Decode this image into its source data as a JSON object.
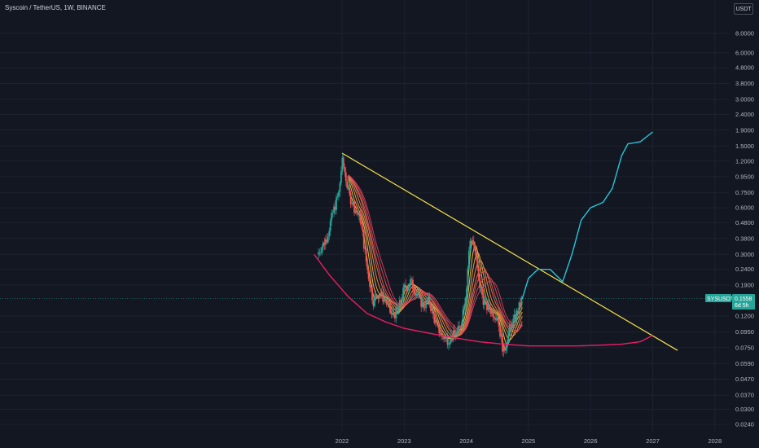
{
  "header": {
    "title": "Syscoin / TetherUS, 1W, BINANCE",
    "currency_button": "USDT"
  },
  "colors": {
    "background": "#131722",
    "grid": "#1e222d",
    "up": "#26a69a",
    "down": "#ef5350",
    "trendline": "#f5e24a",
    "support_curve": "#e91e63",
    "projection": "#26c6da",
    "price_line": "#26a69a"
  },
  "chart_data": {
    "type": "line",
    "symbol_label": "SYSUSDT",
    "last_price": "0.1558",
    "countdown": "6d 5h",
    "y_scale": "log",
    "y_ticks": [
      "8.0000",
      "6.0000",
      "4.8000",
      "3.8000",
      "3.0000",
      "2.4000",
      "1.9000",
      "1.5000",
      "1.2000",
      "0.9500",
      "0.7500",
      "0.6000",
      "0.4800",
      "0.3800",
      "0.3000",
      "0.2400",
      "0.1900",
      "0.1200",
      "0.0950",
      "0.0750",
      "0.0590",
      "0.0470",
      "0.0370",
      "0.0300",
      "0.0240"
    ],
    "x_ticks": [
      "2022",
      "2023",
      "2024",
      "2025",
      "2026",
      "2027",
      "2028"
    ],
    "grid": true,
    "series": [
      {
        "kind": "price",
        "x": [
          2021.6,
          2021.75,
          2021.85,
          2021.95,
          2022.0,
          2022.05,
          2022.1,
          2022.2,
          2022.3,
          2022.4,
          2022.5,
          2022.6,
          2022.7,
          2022.8,
          2022.9,
          2023.0,
          2023.1,
          2023.2,
          2023.3,
          2023.4,
          2023.5,
          2023.6,
          2023.7,
          2023.8,
          2023.9,
          2024.0,
          2024.05,
          2024.1,
          2024.15,
          2024.2,
          2024.3,
          2024.4,
          2024.5,
          2024.55,
          2024.6,
          2024.7,
          2024.8,
          2024.9
        ],
        "y": [
          0.3,
          0.38,
          0.55,
          0.75,
          1.2,
          1.0,
          0.75,
          0.6,
          0.5,
          0.25,
          0.15,
          0.17,
          0.15,
          0.12,
          0.13,
          0.18,
          0.2,
          0.17,
          0.14,
          0.15,
          0.11,
          0.09,
          0.085,
          0.09,
          0.1,
          0.18,
          0.35,
          0.38,
          0.3,
          0.2,
          0.14,
          0.13,
          0.12,
          0.09,
          0.07,
          0.1,
          0.12,
          0.155
        ]
      },
      {
        "kind": "trendline",
        "x": [
          2022.0,
          2027.4
        ],
        "y": [
          1.35,
          0.072
        ]
      },
      {
        "kind": "support_curve",
        "x": [
          2021.55,
          2021.8,
          2022.1,
          2022.4,
          2022.7,
          2023.0,
          2023.4,
          2023.8,
          2024.2,
          2024.6,
          2025.0,
          2025.4,
          2025.8,
          2026.2,
          2026.5,
          2026.8,
          2027.0
        ],
        "y": [
          0.3,
          0.22,
          0.16,
          0.125,
          0.11,
          0.1,
          0.093,
          0.087,
          0.082,
          0.079,
          0.077,
          0.077,
          0.077,
          0.078,
          0.079,
          0.082,
          0.09
        ]
      },
      {
        "kind": "projection",
        "x": [
          2024.9,
          2025.0,
          2025.15,
          2025.35,
          2025.55,
          2025.7,
          2025.85,
          2026.0,
          2026.2,
          2026.35,
          2026.5,
          2026.6,
          2026.8,
          2027.0
        ],
        "y": [
          0.155,
          0.21,
          0.24,
          0.24,
          0.2,
          0.3,
          0.5,
          0.6,
          0.65,
          0.8,
          1.3,
          1.55,
          1.6,
          1.85
        ]
      }
    ],
    "legend": "none"
  }
}
